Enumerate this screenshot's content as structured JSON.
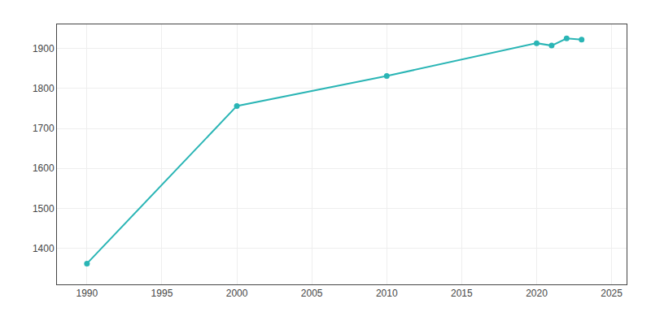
{
  "chart_data": {
    "type": "line",
    "x": [
      1990,
      2000,
      2010,
      2020,
      2021,
      2022,
      2023
    ],
    "values": [
      1362,
      1756,
      1831,
      1913,
      1907,
      1925,
      1922
    ],
    "color": "#2ab5b5",
    "marker": "circle",
    "xlim": [
      1988,
      2026
    ],
    "ylim": [
      1310,
      1960
    ],
    "xticks": [
      1990,
      1995,
      2000,
      2005,
      2010,
      2015,
      2020,
      2025
    ],
    "yticks": [
      1400,
      1500,
      1600,
      1700,
      1800,
      1900
    ],
    "grid": true
  }
}
